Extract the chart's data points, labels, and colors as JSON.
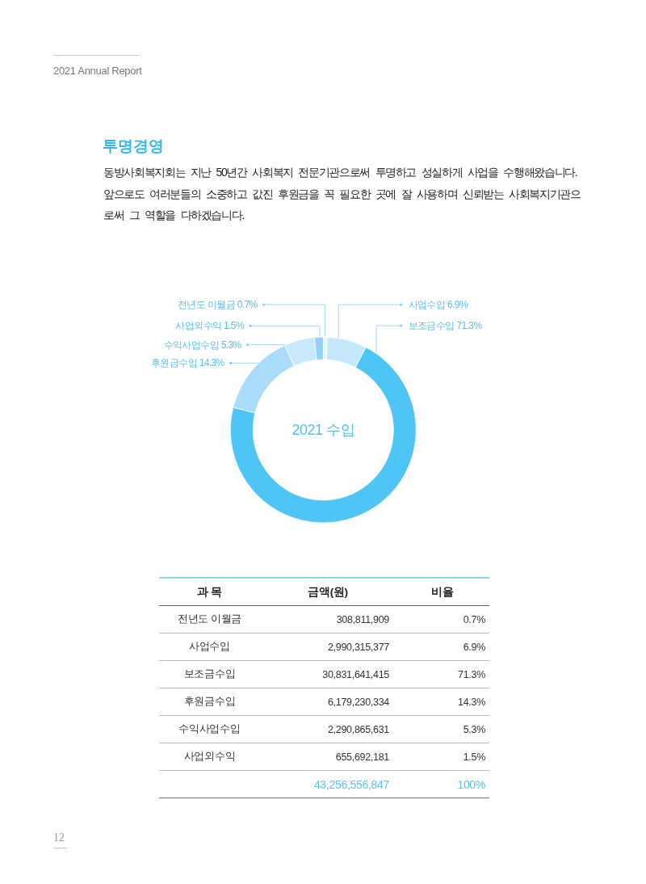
{
  "chart_data": [
    {
      "type": "donut",
      "title": "투명경영",
      "subtitle": "동방사회복지회는 지난 50년간 사회복지 전문기관으로써 투명하고 성실하게 사업을 수행해왔습니다. 앞으로도 여러분들의 소중하고 값진 후원금을 꼭 필요한 곳에 잘 사용하며 신뢰받는 사회복지기관으로써 그 역할을 다하겠습니다.",
      "categories": [
        "전년도 이월금",
        "사업수입",
        "보조금수입",
        "후원금수입",
        "수익사업수입",
        "사업외수익"
      ],
      "values": [
        0.7,
        6.9,
        71.3,
        14.3,
        5.3,
        1.5
      ],
      "value_labels": [
        "0.7%",
        "6.9%",
        "71.3%",
        "14.3%",
        "5.3%",
        "1.5%"
      ],
      "colors": [
        "#e3f5fd",
        "#c5e8fa",
        "#4fc5f5",
        "#a8dcf8",
        "#c8eafb",
        "#8fd3f6"
      ],
      "annotations": [
        "2021 Annual Report",
        "2021 수입",
        "12"
      ]
    },
    {
      "type": "other",
      "annotations": [
        "과 목",
        "금액(원)",
        "비율",
        "전년도 이월금",
        "308,811,909",
        "0.7%",
        "사업수입",
        "2,990,315,377",
        "6.9%",
        "보조금수입",
        "30,831,641,415",
        "71.3%",
        "후원금수입",
        "6,179,230,334",
        "14.3%",
        "수익사업수입",
        "2,290,865,631",
        "5.3%",
        "사업외수익",
        "655,692,181",
        "1.5%",
        "43,256,556,847",
        "100%"
      ]
    }
  ]
}
